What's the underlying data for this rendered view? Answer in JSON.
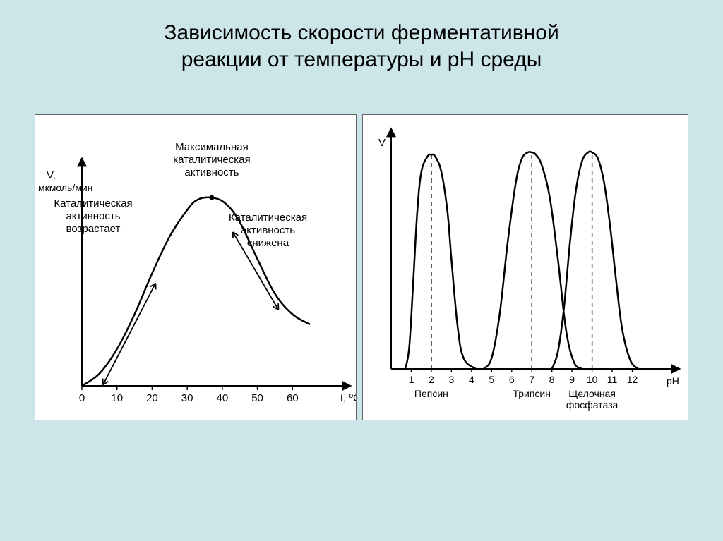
{
  "title_line1": "Зависимость скорости ферментативной",
  "title_line2": "реакции от температуры и рН среды",
  "background_color": "#cce5e8",
  "panel_bg": "#ffffff",
  "stroke_color": "#000000",
  "curve_width": 2.5,
  "axis_width": 2,
  "left_chart": {
    "type": "line",
    "y_label_line1": "V,",
    "y_label_line2": "мкмоль/мин",
    "x_label": "t, ºC",
    "xlim": [
      0,
      70
    ],
    "x_ticks": [
      0,
      10,
      20,
      30,
      40,
      50,
      60
    ],
    "annotation_top_l1": "Максимальная",
    "annotation_top_l2": "каталитическая",
    "annotation_top_l3": "активность",
    "annotation_left_l1": "Каталитическая",
    "annotation_left_l2": "активность",
    "annotation_left_l3": "возрастает",
    "annotation_right_l1": "Каталитическая",
    "annotation_right_l2": "активность",
    "annotation_right_l3": "снижена",
    "curve_points": [
      [
        0,
        0
      ],
      [
        5,
        6
      ],
      [
        10,
        18
      ],
      [
        15,
        35
      ],
      [
        20,
        55
      ],
      [
        25,
        73
      ],
      [
        30,
        86
      ],
      [
        33,
        91
      ],
      [
        37,
        92
      ],
      [
        41,
        89
      ],
      [
        45,
        80
      ],
      [
        50,
        62
      ],
      [
        55,
        45
      ],
      [
        60,
        35
      ],
      [
        65,
        30
      ]
    ],
    "font_size_axis": 15,
    "font_size_annot": 15,
    "peak_dot_x": 37,
    "peak_dot_y": 92
  },
  "right_chart": {
    "type": "multi-bell",
    "y_label": "V",
    "x_label": "pH",
    "xlim": [
      0,
      13
    ],
    "x_ticks": [
      1,
      2,
      3,
      4,
      5,
      6,
      7,
      8,
      9,
      10,
      11,
      12
    ],
    "dash_lines_x": [
      2,
      7,
      10
    ],
    "bottom_labels": [
      {
        "x": 2,
        "text": "Пепсин"
      },
      {
        "x": 7,
        "text": "Трипсин"
      },
      {
        "x_l1": 10,
        "text_l1": "Щелочная",
        "text_l2": "фосфатаза"
      }
    ],
    "curves": [
      [
        [
          0.7,
          0
        ],
        [
          0.9,
          10
        ],
        [
          1.1,
          40
        ],
        [
          1.3,
          72
        ],
        [
          1.5,
          90
        ],
        [
          1.8,
          97
        ],
        [
          2.0,
          98
        ],
        [
          2.2,
          97
        ],
        [
          2.5,
          90
        ],
        [
          2.8,
          72
        ],
        [
          3.0,
          50
        ],
        [
          3.3,
          20
        ],
        [
          3.6,
          5
        ],
        [
          4.2,
          0
        ]
      ],
      [
        [
          4.6,
          0
        ],
        [
          5.0,
          5
        ],
        [
          5.4,
          25
        ],
        [
          5.8,
          58
        ],
        [
          6.2,
          85
        ],
        [
          6.5,
          96
        ],
        [
          6.8,
          99
        ],
        [
          7.0,
          99
        ],
        [
          7.2,
          98
        ],
        [
          7.5,
          93
        ],
        [
          7.9,
          78
        ],
        [
          8.3,
          50
        ],
        [
          8.7,
          18
        ],
        [
          9.1,
          3
        ],
        [
          9.5,
          0
        ]
      ],
      [
        [
          8.0,
          0
        ],
        [
          8.3,
          8
        ],
        [
          8.6,
          28
        ],
        [
          8.9,
          58
        ],
        [
          9.2,
          82
        ],
        [
          9.5,
          95
        ],
        [
          9.8,
          99
        ],
        [
          10.0,
          99
        ],
        [
          10.3,
          96
        ],
        [
          10.6,
          85
        ],
        [
          10.9,
          65
        ],
        [
          11.2,
          40
        ],
        [
          11.5,
          18
        ],
        [
          11.9,
          4
        ],
        [
          12.3,
          0
        ]
      ]
    ],
    "dash_pattern": "6 5",
    "font_size_axis": 14,
    "font_size_label": 14
  }
}
